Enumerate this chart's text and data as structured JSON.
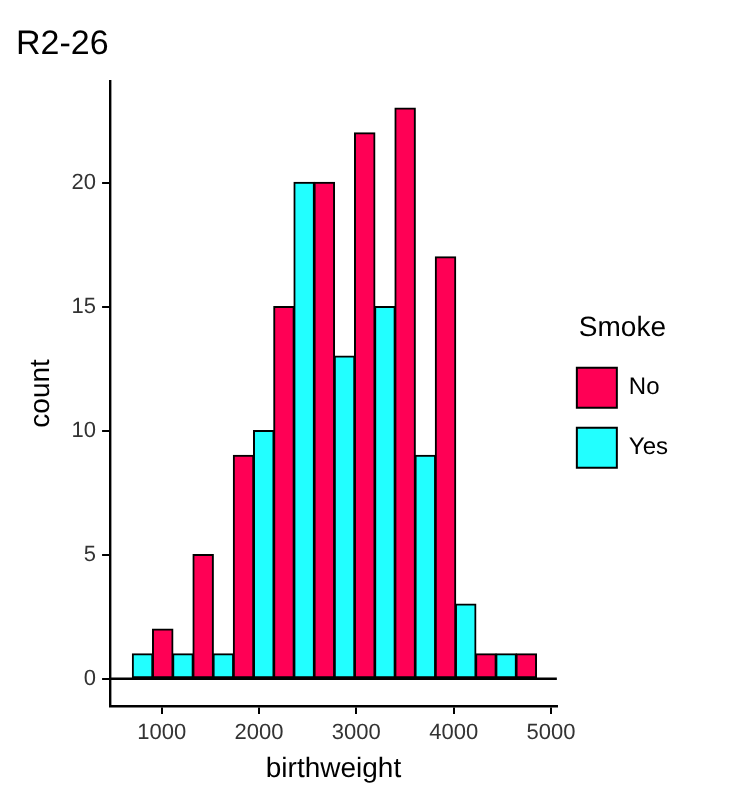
{
  "chart_data": {
    "type": "histogram",
    "title": "R2-26",
    "xlabel": "birthweight",
    "ylabel": "count",
    "legend_title": "Smoke",
    "bins": [
      700,
      1115,
      1530,
      1945,
      2360,
      2775,
      3190,
      3605,
      4020,
      4435,
      4850
    ],
    "series": [
      {
        "name": "No",
        "color": "#ff0055",
        "values": [
          2,
          5,
          9,
          15,
          20,
          22,
          23,
          17,
          1,
          1
        ]
      },
      {
        "name": "Yes",
        "color": "#22ffff",
        "values": [
          1,
          1,
          1,
          10,
          20,
          13,
          15,
          9,
          3,
          1
        ]
      }
    ],
    "xlim": [
      470,
      5060
    ],
    "xticks": [
      1000,
      2000,
      3000,
      4000,
      5000
    ],
    "ylim": [
      -1.1,
      24.1
    ],
    "yticks": [
      0,
      5,
      10,
      15,
      20
    ],
    "ref_lines": [
      {
        "axis": "y",
        "value": 0,
        "color": "#000000"
      }
    ],
    "grid": false,
    "legend": "right"
  }
}
